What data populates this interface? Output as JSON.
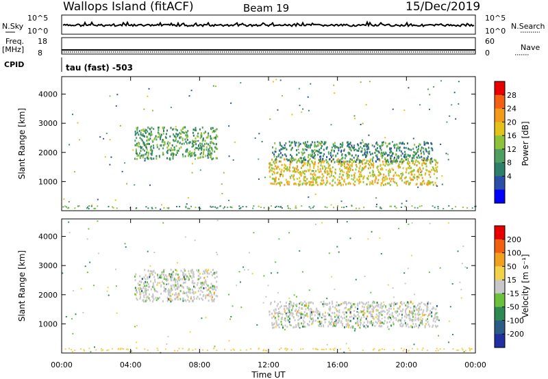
{
  "header": {
    "station": "Wallops Island (fitACF)",
    "beam": "Beam 19",
    "date": "15/Dec/2019"
  },
  "noise_panel": {
    "left_label": "N.Sky",
    "right_label": "N.Search",
    "left_ticks": [
      "10^5",
      "10^0"
    ],
    "right_ticks": [
      "10^5",
      "10^0"
    ]
  },
  "freq_panel": {
    "left_label_1": "Freq.",
    "left_label_2": "[MHz]",
    "right_label": "Nave",
    "left_ticks": [
      "18",
      "8"
    ],
    "right_ticks": [
      "60",
      "0"
    ]
  },
  "cpid": {
    "label": "CPID",
    "text": "tau (fast) -503"
  },
  "chart_data": [
    {
      "type": "heatmap",
      "name": "power",
      "ylabel": "Slant Range [km]",
      "yticks": [
        "1000",
        "2000",
        "3000",
        "4000"
      ],
      "ylim": [
        0,
        4600
      ],
      "xticks": [
        "00:00",
        "04:00",
        "08:00",
        "12:00",
        "16:00",
        "20:00",
        "00:00"
      ],
      "xlim_hours": [
        0,
        24
      ],
      "colorbar": {
        "label": "Power [dB]",
        "ticks": [
          "28",
          "24",
          "20",
          "16",
          "12",
          "8",
          "4"
        ],
        "levels": [
          0,
          4,
          8,
          12,
          16,
          20,
          24,
          28,
          32
        ],
        "colors": [
          "#0000ff",
          "#2b4fa8",
          "#2d7f6a",
          "#4fa060",
          "#8fc23b",
          "#e3c21b",
          "#f39a1b",
          "#f26013",
          "#e60000"
        ]
      },
      "clusters": [
        {
          "t0": 4.2,
          "t1": 9.0,
          "r0": 1800,
          "r1": 2900,
          "level": 14
        },
        {
          "t0": 12.0,
          "t1": 21.8,
          "r0": 900,
          "r1": 1800,
          "level": 22
        },
        {
          "t0": 12.2,
          "t1": 21.5,
          "r0": 1700,
          "r1": 2400,
          "level": 12
        }
      ]
    },
    {
      "type": "heatmap",
      "name": "velocity",
      "ylabel": "Slant Range [km]",
      "yticks": [
        "1000",
        "2000",
        "3000",
        "4000"
      ],
      "ylim": [
        0,
        4600
      ],
      "xticks": [
        "00:00",
        "04:00",
        "08:00",
        "12:00",
        "16:00",
        "20:00",
        "00:00"
      ],
      "xlabel": "Time UT",
      "xlim_hours": [
        0,
        24
      ],
      "colorbar": {
        "label": "Velocity [m s⁻¹]",
        "ticks": [
          "200",
          "100",
          "50",
          "15",
          "-15",
          "-50",
          "-100",
          "-200"
        ],
        "colors": [
          "#2030a0",
          "#2a5c86",
          "#2e8a52",
          "#6cc13c",
          "#c8c8c8",
          "#f2d24a",
          "#f2a020",
          "#f06010",
          "#e60000"
        ]
      },
      "clusters": [
        {
          "t0": 4.2,
          "t1": 9.0,
          "r0": 1800,
          "r1": 2900,
          "level": 0
        },
        {
          "t0": 12.0,
          "t1": 21.8,
          "r0": 900,
          "r1": 1800,
          "level": 0
        }
      ]
    }
  ]
}
